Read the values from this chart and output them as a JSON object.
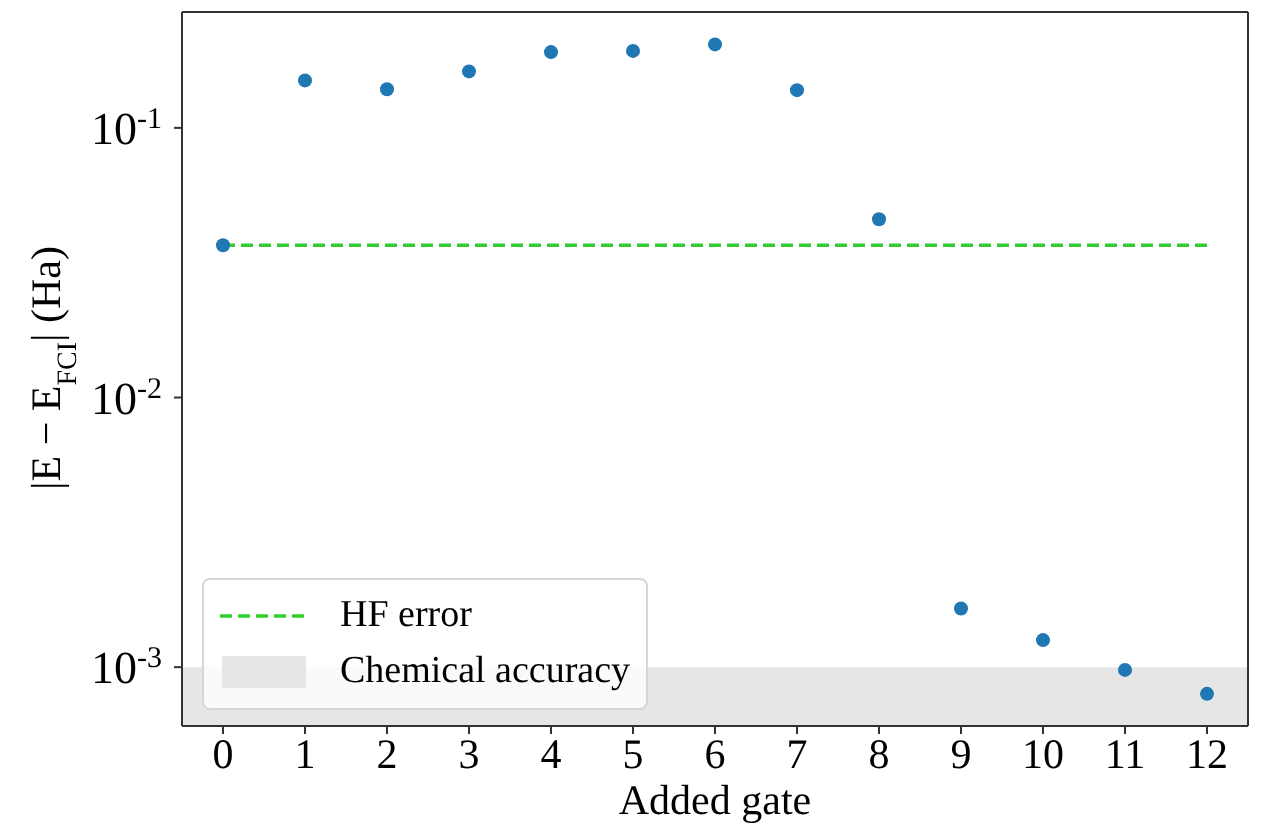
{
  "chart_data": {
    "type": "scatter",
    "xlabel": "Added gate",
    "ylabel": "|E − E$_{FCI}$| (Ha)",
    "x": [
      0,
      1,
      2,
      3,
      4,
      5,
      6,
      7,
      8,
      9,
      10,
      11,
      12
    ],
    "series": [
      {
        "color": "#1f77b4",
        "values": [
          0.0367,
          0.15,
          0.139,
          0.162,
          0.191,
          0.193,
          0.204,
          0.138,
          0.0458,
          0.00165,
          0.00126,
          0.000977,
          0.000796
        ]
      }
    ],
    "marker": "circle",
    "log": "y",
    "xlim": [
      -0.5,
      12.5
    ],
    "xticks": [
      0,
      1,
      2,
      3,
      4,
      5,
      6,
      7,
      8,
      9,
      10,
      11,
      12
    ],
    "ylim": [
      0.000605,
      0.269
    ],
    "yticks": [
      {
        "value": 0.001,
        "label": "10$^{-3}$"
      },
      {
        "value": 0.01,
        "label": "10$^{-2}$"
      },
      {
        "value": 0.1,
        "label": "10$^{-1}$"
      }
    ],
    "ref_lines": [
      {
        "axis": "y",
        "value": 0.0367,
        "label": "HF error",
        "color": "#32cd32",
        "line_style": "dashed"
      }
    ],
    "bands": [
      {
        "axis": "y",
        "from": 0.000605,
        "to": 0.001,
        "label": "Chemical accuracy",
        "color": "#e6e6e6"
      }
    ],
    "legend": "bottom left"
  }
}
